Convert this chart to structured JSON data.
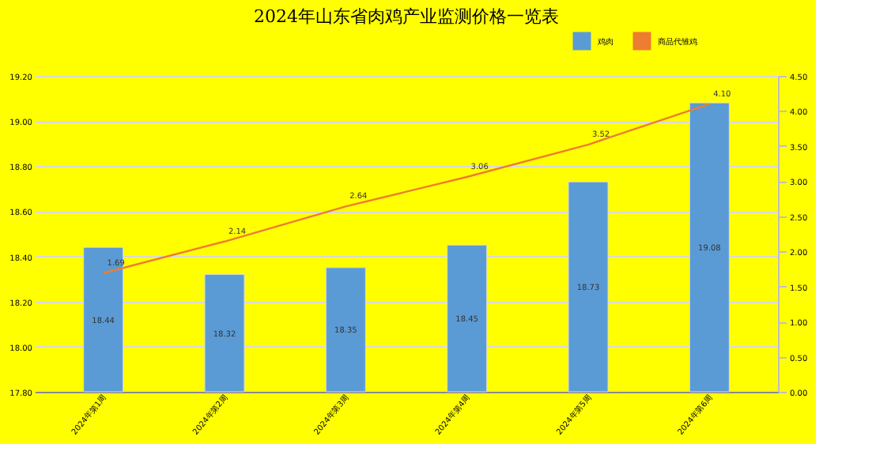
{
  "chart_data": {
    "type": "bar",
    "title": "2024年山东省肉鸡产业监测价格一览表",
    "categories": [
      "2024年第1周",
      "2024年第2周",
      "2024年第3周",
      "2024年第4周",
      "2024年第5周",
      "2024年第6周"
    ],
    "series": [
      {
        "name": "鸡肉",
        "color": "#5b9bd5",
        "values": [
          18.44,
          18.32,
          18.35,
          18.45,
          18.73,
          19.08
        ]
      },
      {
        "name": "商品代雏鸡",
        "type": "line",
        "axis": "y2",
        "color": "#ed7d31",
        "values": [
          1.69,
          2.14,
          2.64,
          3.06,
          3.52,
          4.1
        ],
        "value_labels": [
          "1.69",
          "2.14",
          "2.64",
          "3.06",
          "3.52",
          "4.10"
        ]
      }
    ],
    "ylim": [
      17.8,
      19.2
    ],
    "yticks": [
      {
        "value": 17.8,
        "label": "17.80"
      },
      {
        "value": 18.0,
        "label": "18.00"
      },
      {
        "value": 18.2,
        "label": "18.20"
      },
      {
        "value": 18.4,
        "label": "18.40"
      },
      {
        "value": 18.6,
        "label": "18.60"
      },
      {
        "value": 18.8,
        "label": "18.80"
      },
      {
        "value": 19.0,
        "label": "19.00"
      },
      {
        "value": 19.2,
        "label": "19.20"
      }
    ],
    "y2lim": [
      0,
      4.5
    ],
    "y2ticks": [
      {
        "value": 0,
        "label": "0.00"
      },
      {
        "value": 0.5,
        "label": "0.50"
      },
      {
        "value": 1,
        "label": "1.00"
      },
      {
        "value": 1.5,
        "label": "1.50"
      },
      {
        "value": 2,
        "label": "2.00"
      },
      {
        "value": 2.5,
        "label": "2.50"
      },
      {
        "value": 3,
        "label": "3.00"
      },
      {
        "value": 3.5,
        "label": "3.50"
      },
      {
        "value": 4,
        "label": "4.00"
      },
      {
        "value": 4.5,
        "label": "4.50"
      }
    ],
    "grid": "y",
    "legend": "top right",
    "data_labels": true
  }
}
